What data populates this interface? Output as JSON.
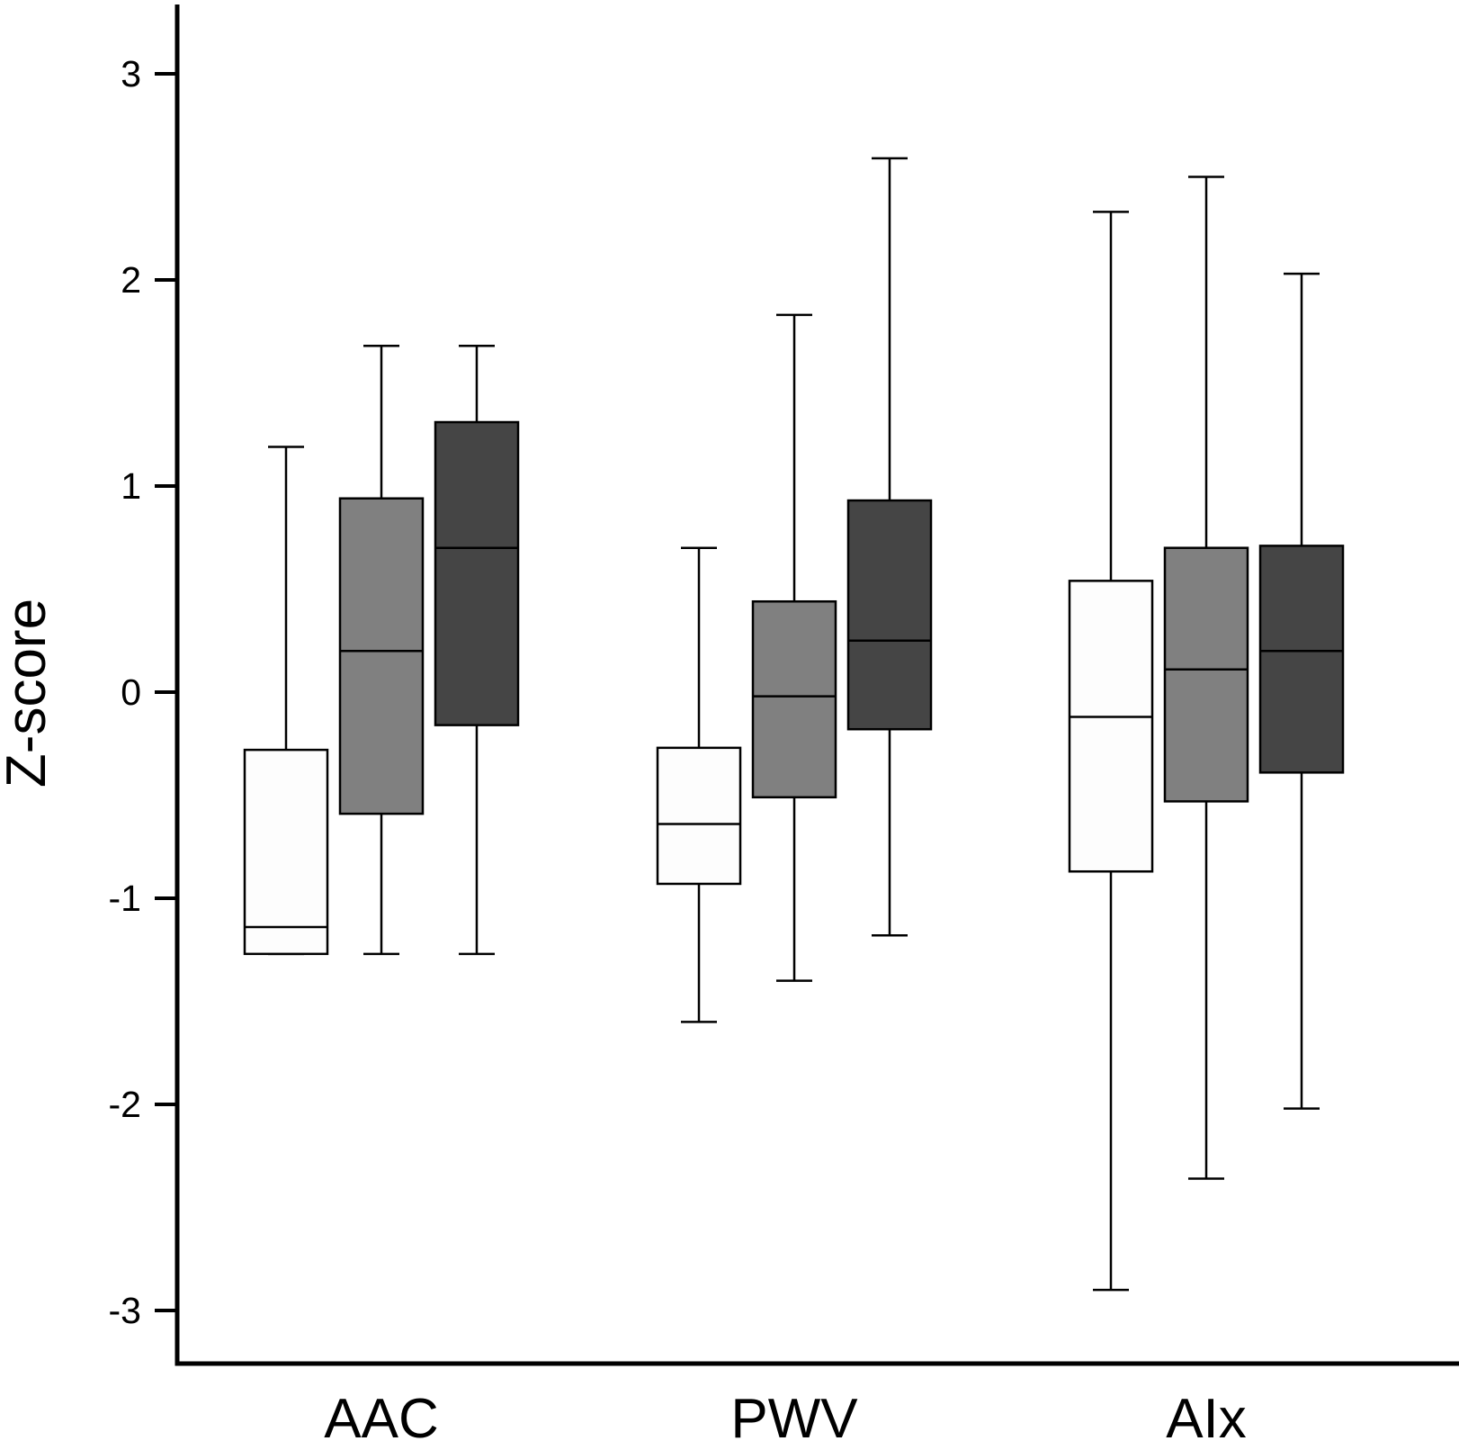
{
  "chart_data": {
    "type": "box",
    "ylabel": "Z-score",
    "xlabel": "",
    "ylim": [
      -3.2,
      3.3
    ],
    "yticks": [
      -3,
      -2,
      -1,
      0,
      1,
      2,
      3
    ],
    "ytick_labels": [
      "-3",
      "-2",
      "-1",
      "0",
      "1",
      "2",
      "3"
    ],
    "categories": [
      "AAC",
      "PWV",
      "AIx"
    ],
    "series": [
      {
        "fill": "#fdfdfd",
        "boxes": [
          {
            "category": "AAC",
            "whisker_low": -1.27,
            "q1": -1.27,
            "median": -1.14,
            "q3": -0.28,
            "whisker_high": 1.19
          },
          {
            "category": "PWV",
            "whisker_low": -1.6,
            "q1": -0.93,
            "median": -0.64,
            "q3": -0.27,
            "whisker_high": 0.7
          },
          {
            "category": "AIx",
            "whisker_low": -2.9,
            "q1": -0.87,
            "median": -0.12,
            "q3": 0.54,
            "whisker_high": 2.33
          }
        ]
      },
      {
        "fill": "#808080",
        "boxes": [
          {
            "category": "AAC",
            "whisker_low": -1.27,
            "q1": -0.59,
            "median": 0.2,
            "q3": 0.94,
            "whisker_high": 1.68
          },
          {
            "category": "PWV",
            "whisker_low": -1.4,
            "q1": -0.51,
            "median": -0.02,
            "q3": 0.44,
            "whisker_high": 1.83
          },
          {
            "category": "AIx",
            "whisker_low": -2.36,
            "q1": -0.53,
            "median": 0.11,
            "q3": 0.7,
            "whisker_high": 2.5
          }
        ]
      },
      {
        "fill": "#454545",
        "boxes": [
          {
            "category": "AAC",
            "whisker_low": -1.27,
            "q1": -0.16,
            "median": 0.7,
            "q3": 1.31,
            "whisker_high": 1.68
          },
          {
            "category": "PWV",
            "whisker_low": -1.18,
            "q1": -0.18,
            "median": 0.25,
            "q3": 0.93,
            "whisker_high": 2.59
          },
          {
            "category": "AIx",
            "whisker_low": -2.02,
            "q1": -0.39,
            "median": 0.2,
            "q3": 0.71,
            "whisker_high": 2.03
          }
        ]
      }
    ],
    "grid": false,
    "legend": "none"
  }
}
